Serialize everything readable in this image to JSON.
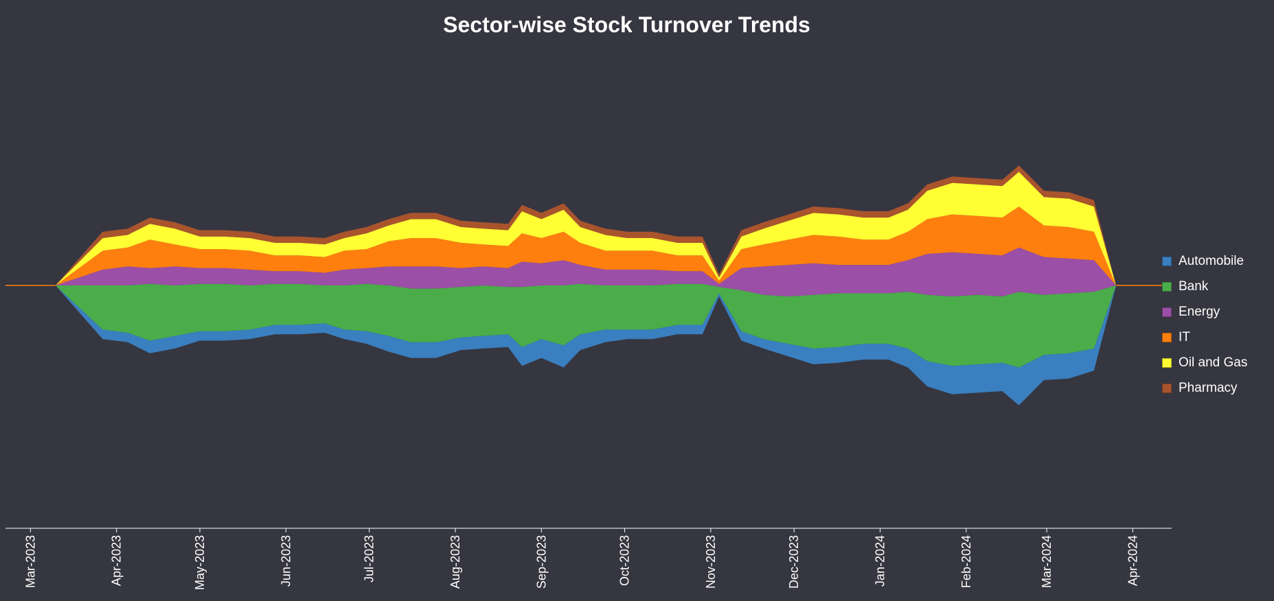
{
  "chart_data": {
    "type": "area",
    "subtype": "streamgraph",
    "title": "Sector-wise Stock Turnover Trends",
    "xlabel": "",
    "ylabel": "",
    "x_range": [
      "2023-02-20",
      "2024-04-15"
    ],
    "x_ticks": [
      "Mar-2023",
      "Apr-2023",
      "May-2023",
      "Jun-2023",
      "Jul-2023",
      "Aug-2023",
      "Sep-2023",
      "Oct-2023",
      "Nov-2023",
      "Dec-2023",
      "Jan-2024",
      "Feb-2024",
      "Mar-2024",
      "Apr-2024"
    ],
    "x_tick_dates": [
      "2023-03-01",
      "2023-04-01",
      "2023-05-01",
      "2023-06-01",
      "2023-07-01",
      "2023-08-01",
      "2023-09-01",
      "2023-10-01",
      "2023-11-01",
      "2023-12-01",
      "2024-01-01",
      "2024-02-01",
      "2024-03-01",
      "2024-04-01"
    ],
    "legend_position": "right",
    "grid": false,
    "dates": [
      "2023-03-10",
      "2023-03-27",
      "2023-04-05",
      "2023-04-13",
      "2023-04-22",
      "2023-05-01",
      "2023-05-10",
      "2023-05-19",
      "2023-05-28",
      "2023-06-06",
      "2023-06-15",
      "2023-06-22",
      "2023-06-30",
      "2023-07-08",
      "2023-07-16",
      "2023-07-25",
      "2023-08-03",
      "2023-08-11",
      "2023-08-20",
      "2023-08-25",
      "2023-09-01",
      "2023-09-09",
      "2023-09-15",
      "2023-09-24",
      "2023-10-02",
      "2023-10-11",
      "2023-10-20",
      "2023-10-29",
      "2023-11-04",
      "2023-11-12",
      "2023-11-20",
      "2023-11-29",
      "2023-12-08",
      "2023-12-17",
      "2023-12-26",
      "2024-01-04",
      "2024-01-11",
      "2024-01-18",
      "2024-01-27",
      "2024-02-05",
      "2024-02-14",
      "2024-02-20",
      "2024-02-29",
      "2024-03-09",
      "2024-03-18",
      "2024-03-26"
    ],
    "series": [
      {
        "name": "Automobile",
        "color": "#3a7fbf",
        "values": [
          0,
          3,
          3,
          4,
          4,
          3,
          3,
          3,
          3,
          3,
          3,
          3,
          4,
          5,
          5,
          5,
          4,
          4,
          4,
          6,
          6,
          7,
          5,
          4,
          3,
          3,
          3,
          3,
          1,
          3,
          3,
          4,
          5,
          5,
          5,
          5,
          6,
          8,
          9,
          9,
          9,
          12,
          8,
          8,
          7,
          0
        ]
      },
      {
        "name": "Bank",
        "color": "#4aad4a",
        "values": [
          0,
          14,
          15,
          18,
          16,
          15,
          15,
          14,
          13,
          13,
          12,
          14,
          15,
          16,
          17,
          17,
          16,
          16,
          15,
          19,
          17,
          19,
          16,
          14,
          14,
          14,
          13,
          13,
          2,
          13,
          14,
          15,
          17,
          17,
          16,
          16,
          18,
          21,
          22,
          22,
          21,
          24,
          19,
          19,
          18,
          0
        ]
      },
      {
        "name": "Energy",
        "color": "#9b4fa6",
        "values": [
          0,
          5,
          6,
          5,
          6,
          5,
          5,
          5,
          4,
          4,
          4,
          5,
          5,
          6,
          7,
          7,
          6,
          6,
          6,
          8,
          7,
          8,
          6,
          5,
          5,
          5,
          4,
          4,
          1,
          7,
          9,
          10,
          10,
          9,
          9,
          9,
          10,
          13,
          14,
          13,
          13,
          14,
          12,
          11,
          10,
          0
        ]
      },
      {
        "name": "IT",
        "color": "#ff7f0e",
        "values": [
          0,
          6,
          6,
          9,
          7,
          6,
          6,
          6,
          5,
          5,
          5,
          6,
          6,
          8,
          9,
          9,
          8,
          7,
          7,
          9,
          8,
          9,
          7,
          6,
          6,
          6,
          5,
          5,
          1,
          6,
          7,
          8,
          9,
          9,
          8,
          8,
          9,
          11,
          12,
          12,
          12,
          13,
          10,
          10,
          9,
          0
        ]
      },
      {
        "name": "Oil and Gas",
        "color": "#ffff33",
        "values": [
          0,
          4,
          4,
          5,
          5,
          4,
          4,
          4,
          4,
          4,
          4,
          4,
          5,
          5,
          6,
          6,
          5,
          5,
          5,
          7,
          6,
          7,
          5,
          5,
          4,
          4,
          4,
          4,
          1,
          4,
          5,
          6,
          7,
          7,
          7,
          7,
          7,
          9,
          10,
          10,
          10,
          11,
          9,
          9,
          8,
          0
        ]
      },
      {
        "name": "Pharmacy",
        "color": "#a9542d",
        "values": [
          0,
          2,
          2,
          2,
          2,
          2,
          2,
          2,
          2,
          2,
          2,
          2,
          2,
          2,
          2,
          2,
          2,
          2,
          2,
          2,
          2,
          2,
          2,
          2,
          2,
          2,
          2,
          2,
          1,
          2,
          2,
          2,
          2,
          2,
          2,
          2,
          2,
          2,
          2,
          2,
          2,
          2,
          2,
          2,
          2,
          0
        ]
      }
    ]
  }
}
